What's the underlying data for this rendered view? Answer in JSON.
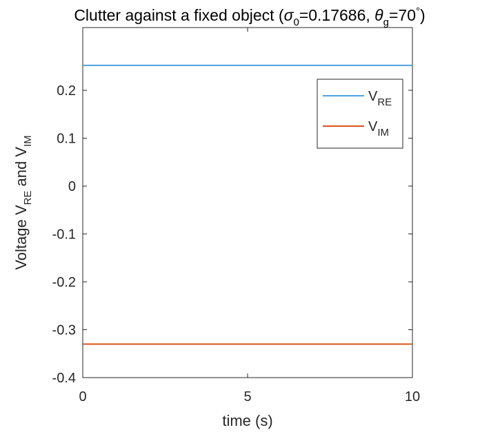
{
  "chart_data": {
    "type": "line",
    "title": [
      "Clutter against a fixed object (",
      "σ",
      "0",
      "=0.17686, ",
      "θ",
      "g",
      "=70",
      "°",
      ")"
    ],
    "xlabel": "time (s)",
    "ylabel": [
      "Voltage V",
      "RE",
      " and V",
      "IM"
    ],
    "x": [
      0,
      10
    ],
    "series": [
      {
        "name": [
          "V",
          "RE"
        ],
        "color": "#4aa3df",
        "values": [
          0.252,
          0.252
        ]
      },
      {
        "name": [
          "V",
          "IM"
        ],
        "color": "#d95319",
        "values": [
          -0.33,
          -0.33
        ]
      }
    ],
    "xlim": [
      0,
      10
    ],
    "xticks": [
      0,
      5,
      10
    ],
    "ylim": [
      -0.4,
      0.331
    ],
    "yticks": [
      -0.4,
      -0.3,
      -0.2,
      -0.1,
      0,
      0.1,
      0.2
    ],
    "grid": false,
    "legend": "northeast"
  }
}
